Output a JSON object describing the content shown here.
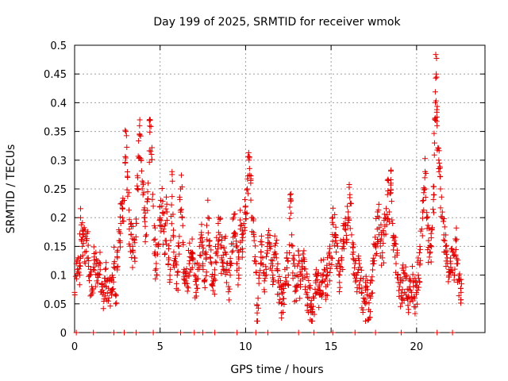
{
  "chart_data": {
    "type": "scatter",
    "title": "Day 199 of 2025, SRMTID for receiver wmok",
    "xlabel": "GPS time / hours",
    "ylabel": "SRMTID / TECUs",
    "xlim": [
      0,
      24
    ],
    "ylim": [
      0,
      0.5
    ],
    "grid": true,
    "marker": "+",
    "color": "#e00000",
    "xticks": [
      0,
      5,
      10,
      15,
      20
    ],
    "xtick_labels": [
      "0",
      "5",
      "10",
      "15",
      "20"
    ],
    "yticks": [
      0,
      0.05,
      0.1,
      0.15,
      0.2,
      0.25,
      0.3,
      0.35,
      0.4,
      0.45,
      0.5
    ],
    "ytick_labels": [
      "0",
      "0.05",
      "0.1",
      "0.15",
      "0.2",
      "0.25",
      "0.3",
      "0.35",
      "0.4",
      "0.45",
      "0.5"
    ],
    "points": [
      [
        0.0,
        0.07
      ],
      [
        0.1,
        0.12
      ],
      [
        0.2,
        0.13
      ],
      [
        0.3,
        0.1
      ],
      [
        0.35,
        0.2
      ],
      [
        0.45,
        0.15
      ],
      [
        0.5,
        0.17
      ],
      [
        0.6,
        0.14
      ],
      [
        0.7,
        0.16
      ],
      [
        0.8,
        0.13
      ],
      [
        0.9,
        0.1
      ],
      [
        1.0,
        0.08
      ],
      [
        1.1,
        0.11
      ],
      [
        1.2,
        0.12
      ],
      [
        1.3,
        0.09
      ],
      [
        1.4,
        0.1
      ],
      [
        1.5,
        0.12
      ],
      [
        1.6,
        0.08
      ],
      [
        1.7,
        0.07
      ],
      [
        1.8,
        0.11
      ],
      [
        1.9,
        0.09
      ],
      [
        2.0,
        0.06
      ],
      [
        2.1,
        0.07
      ],
      [
        2.2,
        0.1
      ],
      [
        2.3,
        0.12
      ],
      [
        2.4,
        0.05
      ],
      [
        2.5,
        0.13
      ],
      [
        2.6,
        0.16
      ],
      [
        2.7,
        0.19
      ],
      [
        2.8,
        0.2
      ],
      [
        2.9,
        0.23
      ],
      [
        3.0,
        0.35
      ],
      [
        3.1,
        0.27
      ],
      [
        3.2,
        0.18
      ],
      [
        3.3,
        0.17
      ],
      [
        3.4,
        0.15
      ],
      [
        3.5,
        0.13
      ],
      [
        3.6,
        0.19
      ],
      [
        3.7,
        0.25
      ],
      [
        3.8,
        0.36
      ],
      [
        3.9,
        0.3
      ],
      [
        4.0,
        0.24
      ],
      [
        4.1,
        0.2
      ],
      [
        4.2,
        0.17
      ],
      [
        4.3,
        0.26
      ],
      [
        4.4,
        0.37
      ],
      [
        4.5,
        0.31
      ],
      [
        4.6,
        0.22
      ],
      [
        4.7,
        0.14
      ],
      [
        4.8,
        0.1
      ],
      [
        4.9,
        0.15
      ],
      [
        5.0,
        0.2
      ],
      [
        5.1,
        0.22
      ],
      [
        5.2,
        0.18
      ],
      [
        5.3,
        0.16
      ],
      [
        5.4,
        0.21
      ],
      [
        5.5,
        0.13
      ],
      [
        5.6,
        0.11
      ],
      [
        5.7,
        0.28
      ],
      [
        5.8,
        0.14
      ],
      [
        5.9,
        0.12
      ],
      [
        6.0,
        0.1
      ],
      [
        6.1,
        0.15
      ],
      [
        6.2,
        0.25
      ],
      [
        6.3,
        0.2
      ],
      [
        6.4,
        0.11
      ],
      [
        6.5,
        0.09
      ],
      [
        6.6,
        0.08
      ],
      [
        6.7,
        0.12
      ],
      [
        6.8,
        0.14
      ],
      [
        6.9,
        0.13
      ],
      [
        7.0,
        0.1
      ],
      [
        7.1,
        0.07
      ],
      [
        7.2,
        0.11
      ],
      [
        7.3,
        0.15
      ],
      [
        7.4,
        0.17
      ],
      [
        7.5,
        0.12
      ],
      [
        7.6,
        0.09
      ],
      [
        7.7,
        0.13
      ],
      [
        7.8,
        0.2
      ],
      [
        7.9,
        0.16
      ],
      [
        8.0,
        0.12
      ],
      [
        8.1,
        0.09
      ],
      [
        8.2,
        0.1
      ],
      [
        8.3,
        0.14
      ],
      [
        8.4,
        0.19
      ],
      [
        8.5,
        0.17
      ],
      [
        8.6,
        0.13
      ],
      [
        8.7,
        0.11
      ],
      [
        8.8,
        0.14
      ],
      [
        8.9,
        0.12
      ],
      [
        9.0,
        0.08
      ],
      [
        9.1,
        0.1
      ],
      [
        9.2,
        0.14
      ],
      [
        9.3,
        0.2
      ],
      [
        9.4,
        0.17
      ],
      [
        9.5,
        0.12
      ],
      [
        9.6,
        0.1
      ],
      [
        9.7,
        0.18
      ],
      [
        9.8,
        0.16
      ],
      [
        9.9,
        0.19
      ],
      [
        10.0,
        0.22
      ],
      [
        10.1,
        0.25
      ],
      [
        10.2,
        0.3
      ],
      [
        10.3,
        0.26
      ],
      [
        10.4,
        0.2
      ],
      [
        10.5,
        0.16
      ],
      [
        10.6,
        0.12
      ],
      [
        10.7,
        0.02
      ],
      [
        10.8,
        0.1
      ],
      [
        10.9,
        0.14
      ],
      [
        11.0,
        0.13
      ],
      [
        11.1,
        0.09
      ],
      [
        11.2,
        0.11
      ],
      [
        11.3,
        0.17
      ],
      [
        11.4,
        0.15
      ],
      [
        11.5,
        0.12
      ],
      [
        11.6,
        0.1
      ],
      [
        11.7,
        0.14
      ],
      [
        11.8,
        0.13
      ],
      [
        11.9,
        0.09
      ],
      [
        12.0,
        0.08
      ],
      [
        12.1,
        0.05
      ],
      [
        12.2,
        0.07
      ],
      [
        12.3,
        0.11
      ],
      [
        12.4,
        0.13
      ],
      [
        12.5,
        0.1
      ],
      [
        12.6,
        0.24
      ],
      [
        12.7,
        0.17
      ],
      [
        12.8,
        0.12
      ],
      [
        12.9,
        0.08
      ],
      [
        13.0,
        0.1
      ],
      [
        13.1,
        0.12
      ],
      [
        13.2,
        0.09
      ],
      [
        13.3,
        0.11
      ],
      [
        13.4,
        0.13
      ],
      [
        13.5,
        0.08
      ],
      [
        13.6,
        0.07
      ],
      [
        13.7,
        0.06
      ],
      [
        13.8,
        0.05
      ],
      [
        13.9,
        0.04
      ],
      [
        14.0,
        0.06
      ],
      [
        14.1,
        0.09
      ],
      [
        14.2,
        0.07
      ],
      [
        14.3,
        0.08
      ],
      [
        14.4,
        0.1
      ],
      [
        14.5,
        0.09
      ],
      [
        14.6,
        0.11
      ],
      [
        14.7,
        0.08
      ],
      [
        14.8,
        0.1
      ],
      [
        14.9,
        0.12
      ],
      [
        15.0,
        0.13
      ],
      [
        15.1,
        0.2
      ],
      [
        15.2,
        0.17
      ],
      [
        15.3,
        0.14
      ],
      [
        15.4,
        0.12
      ],
      [
        15.5,
        0.1
      ],
      [
        15.6,
        0.13
      ],
      [
        15.7,
        0.15
      ],
      [
        15.8,
        0.18
      ],
      [
        15.9,
        0.16
      ],
      [
        16.0,
        0.21
      ],
      [
        16.1,
        0.24
      ],
      [
        16.2,
        0.17
      ],
      [
        16.3,
        0.14
      ],
      [
        16.4,
        0.12
      ],
      [
        16.5,
        0.1
      ],
      [
        16.6,
        0.11
      ],
      [
        16.7,
        0.09
      ],
      [
        16.8,
        0.07
      ],
      [
        16.9,
        0.06
      ],
      [
        17.0,
        0.05
      ],
      [
        17.1,
        0.08
      ],
      [
        17.2,
        0.04
      ],
      [
        17.3,
        0.06
      ],
      [
        17.4,
        0.09
      ],
      [
        17.5,
        0.12
      ],
      [
        17.6,
        0.15
      ],
      [
        17.7,
        0.18
      ],
      [
        17.8,
        0.2
      ],
      [
        17.9,
        0.16
      ],
      [
        18.0,
        0.13
      ],
      [
        18.1,
        0.17
      ],
      [
        18.2,
        0.2
      ],
      [
        18.3,
        0.24
      ],
      [
        18.4,
        0.21
      ],
      [
        18.5,
        0.26
      ],
      [
        18.6,
        0.19
      ],
      [
        18.7,
        0.16
      ],
      [
        18.8,
        0.12
      ],
      [
        18.9,
        0.1
      ],
      [
        19.0,
        0.08
      ],
      [
        19.1,
        0.06
      ],
      [
        19.2,
        0.09
      ],
      [
        19.3,
        0.07
      ],
      [
        19.4,
        0.1
      ],
      [
        19.5,
        0.06
      ],
      [
        19.6,
        0.08
      ],
      [
        19.7,
        0.07
      ],
      [
        19.8,
        0.09
      ],
      [
        19.9,
        0.06
      ],
      [
        20.0,
        0.08
      ],
      [
        20.1,
        0.1
      ],
      [
        20.2,
        0.12
      ],
      [
        20.3,
        0.18
      ],
      [
        20.4,
        0.23
      ],
      [
        20.5,
        0.28
      ],
      [
        20.6,
        0.2
      ],
      [
        20.7,
        0.16
      ],
      [
        20.8,
        0.14
      ],
      [
        20.9,
        0.18
      ],
      [
        21.0,
        0.24
      ],
      [
        21.05,
        0.33
      ],
      [
        21.1,
        0.4
      ],
      [
        21.15,
        0.45
      ],
      [
        21.2,
        0.36
      ],
      [
        21.3,
        0.3
      ],
      [
        21.4,
        0.25
      ],
      [
        21.5,
        0.2
      ],
      [
        21.6,
        0.17
      ],
      [
        21.7,
        0.15
      ],
      [
        21.8,
        0.13
      ],
      [
        21.9,
        0.11
      ],
      [
        22.0,
        0.12
      ],
      [
        22.1,
        0.14
      ],
      [
        22.2,
        0.1
      ],
      [
        22.3,
        0.16
      ],
      [
        22.4,
        0.12
      ],
      [
        22.5,
        0.09
      ],
      [
        22.6,
        0.07
      ]
    ],
    "zero_markers_x": [
      0.1,
      1.1,
      2.3,
      2.9,
      3.6,
      4.6,
      6.2,
      7.0,
      7.5,
      8.2,
      9.5,
      10.6,
      11.3,
      13.1,
      14.0,
      15.1,
      16.4,
      17.6,
      19.1,
      21.2,
      22.1
    ]
  }
}
